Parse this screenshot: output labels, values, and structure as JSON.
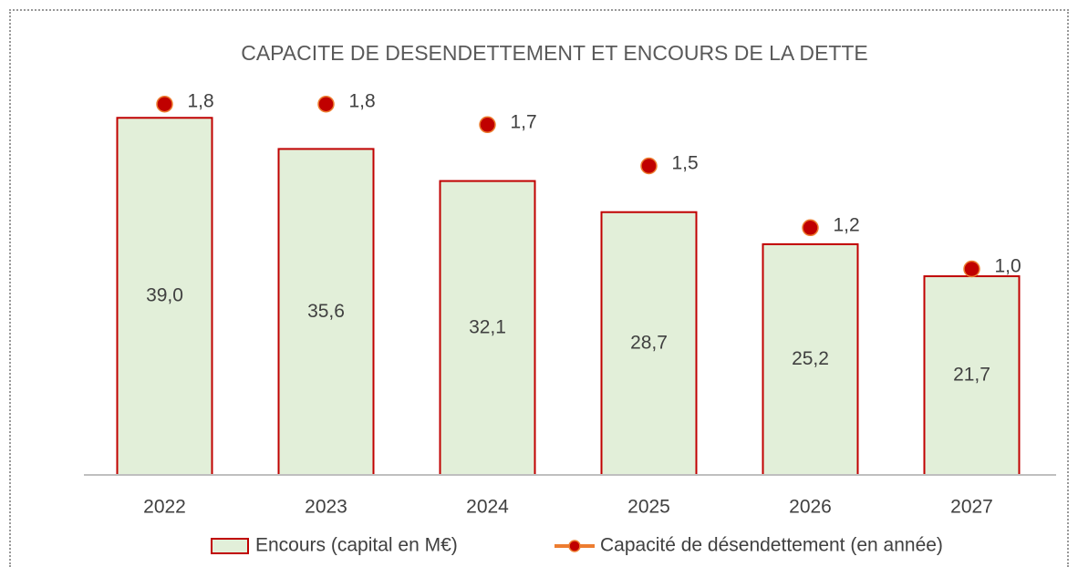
{
  "chart_data": {
    "type": "bar_line",
    "title": "CAPACITE DE DESENDETTEMENT ET ENCOURS DE LA DETTE",
    "categories": [
      "2022",
      "2023",
      "2024",
      "2025",
      "2026",
      "2027"
    ],
    "series": [
      {
        "name": "Encours (capital en M€)",
        "type": "bar",
        "color": "#e2efd9",
        "edge_color": "#c00000",
        "values": [
          39.0,
          35.6,
          32.1,
          28.7,
          25.2,
          21.7
        ],
        "value_labels": [
          "39,0",
          "35,6",
          "32,1",
          "28,7",
          "25,2",
          "21,7"
        ]
      },
      {
        "name": "Capacité de désendettement (en année)",
        "type": "line",
        "axis": "y2",
        "color": "#ed7d31",
        "marker_color": "#c00000",
        "values": [
          1.8,
          1.8,
          1.7,
          1.5,
          1.2,
          1.0
        ],
        "value_labels": [
          "1,8",
          "1,8",
          "1,7",
          "1,5",
          "1,2",
          "1,0"
        ]
      }
    ],
    "ylim": [
      0,
      45
    ],
    "y2lim": [
      0,
      2
    ],
    "grid": false,
    "legend": "bottom"
  }
}
